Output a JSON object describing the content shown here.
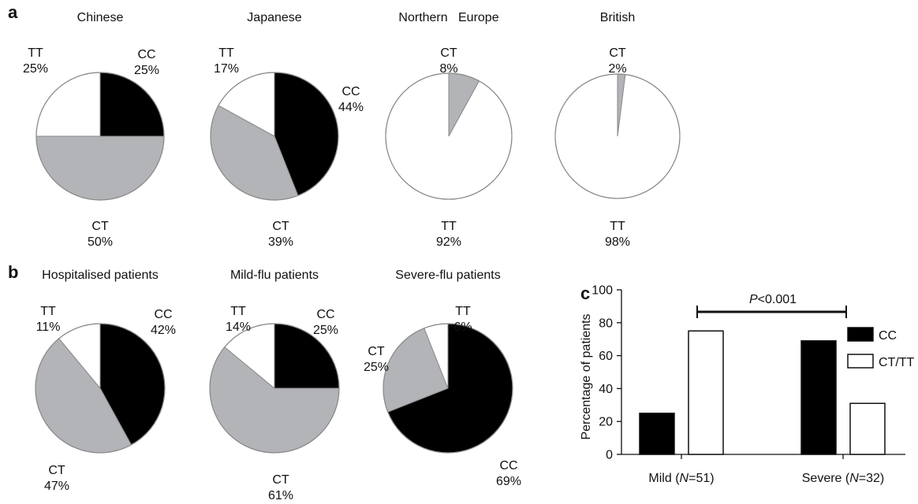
{
  "panels": [
    {
      "letter": "a"
    },
    {
      "letter": "b"
    },
    {
      "letter": "c"
    }
  ],
  "colors": {
    "CC": "#000000",
    "CT": "#b2b4b7",
    "TT": "#ffffff",
    "outline": "#8a8a8a"
  },
  "chart_data": [
    {
      "type": "pie",
      "title": "Chinese",
      "categories": [
        "CC",
        "CT",
        "TT"
      ],
      "values": [
        25,
        50,
        25
      ]
    },
    {
      "type": "pie",
      "title": "Japanese",
      "categories": [
        "CC",
        "CT",
        "TT"
      ],
      "values": [
        44,
        39,
        17
      ]
    },
    {
      "type": "pie",
      "title": "Northern   Europe",
      "categories": [
        "CT",
        "TT"
      ],
      "values": [
        8,
        92
      ]
    },
    {
      "type": "pie",
      "title": "British",
      "categories": [
        "CT",
        "TT"
      ],
      "values": [
        2,
        98
      ]
    },
    {
      "type": "pie",
      "title": "Hospitalised patients",
      "categories": [
        "CC",
        "CT",
        "TT"
      ],
      "values": [
        42,
        47,
        11
      ]
    },
    {
      "type": "pie",
      "title": "Mild-flu patients",
      "categories": [
        "CC",
        "CT",
        "TT"
      ],
      "values": [
        25,
        61,
        14
      ]
    },
    {
      "type": "pie",
      "title": "Severe-flu patients",
      "categories": [
        "CC",
        "CT",
        "TT"
      ],
      "values": [
        69,
        25,
        6
      ]
    },
    {
      "type": "bar",
      "ylabel": "Percentage of patients",
      "ylim": [
        0,
        100
      ],
      "yticks": [
        0,
        20,
        40,
        60,
        80,
        100
      ],
      "categories": [
        "Mild (N=51)",
        "Severe (N=32)"
      ],
      "series": [
        {
          "name": "CC",
          "values": [
            25,
            69
          ]
        },
        {
          "name": "CT/TT",
          "values": [
            75,
            31
          ]
        }
      ],
      "annotation": "P<0.001",
      "legend_position": "right"
    }
  ]
}
